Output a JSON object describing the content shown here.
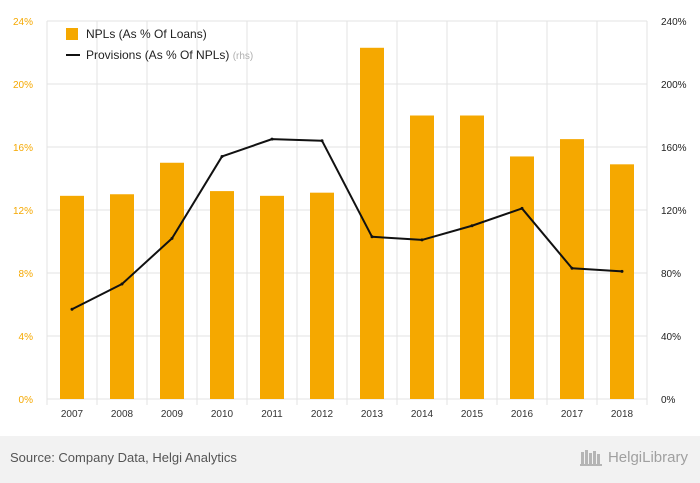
{
  "chart_data": {
    "type": "bar+line",
    "categories": [
      "2007",
      "2008",
      "2009",
      "2010",
      "2011",
      "2012",
      "2013",
      "2014",
      "2015",
      "2016",
      "2017",
      "2018"
    ],
    "series": [
      {
        "name": "NPLs (As % Of Loans)",
        "type": "bar",
        "axis": "left",
        "color": "#f5a800",
        "values": [
          12.9,
          13.0,
          15.0,
          13.2,
          12.9,
          13.1,
          22.3,
          18.0,
          18.0,
          15.4,
          16.5,
          14.9
        ]
      },
      {
        "name": "Provisions (As % Of NPLs)",
        "axis_note": "(rhs)",
        "type": "line",
        "axis": "right",
        "color": "#111111",
        "values": [
          57,
          73,
          102,
          154,
          165,
          164,
          103,
          101,
          110,
          121,
          83,
          81
        ]
      }
    ],
    "y_left": {
      "min": 0,
      "max": 24,
      "ticks": [
        "0%",
        "4%",
        "8%",
        "12%",
        "16%",
        "20%",
        "24%"
      ],
      "color": "#f5a800"
    },
    "y_right": {
      "min": 0,
      "max": 240,
      "ticks": [
        "0%",
        "40%",
        "80%",
        "120%",
        "160%",
        "200%",
        "240%"
      ],
      "color": "#222222"
    },
    "grid": true,
    "legend_position": "top-left"
  },
  "footer": {
    "source": "Source: Company Data, Helgi Analytics",
    "brand": "HelgiLibrary"
  },
  "colors": {
    "bar": "#f5a800",
    "line": "#111111",
    "grid": "#e3e3e3",
    "rhs_note": "#b0b0b0"
  }
}
